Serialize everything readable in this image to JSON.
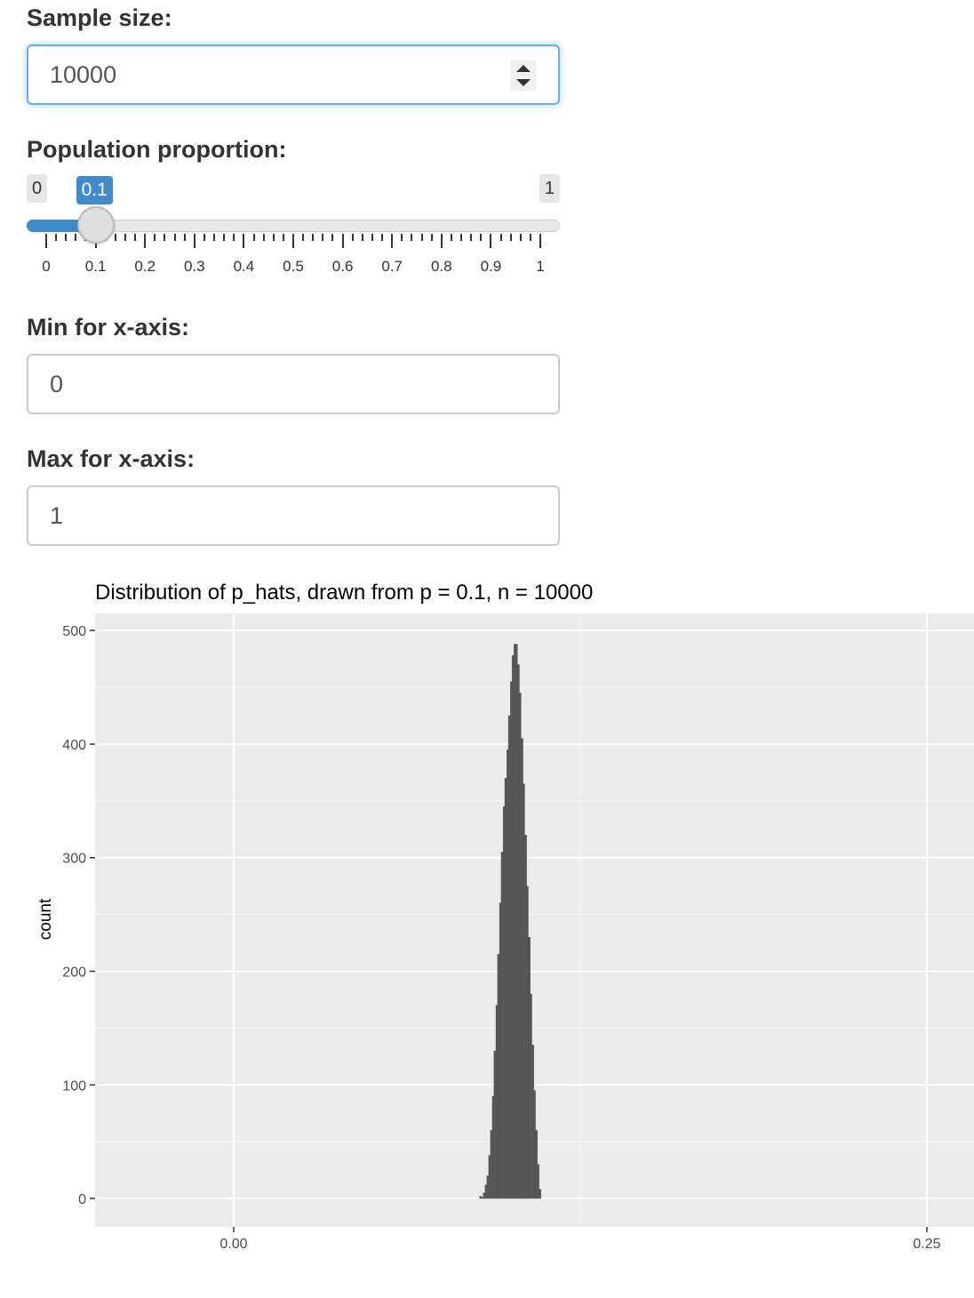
{
  "sample_size": {
    "label": "Sample size:",
    "value": "10000"
  },
  "proportion": {
    "label": "Population proportion:",
    "min_badge": "0",
    "max_badge": "1",
    "value_badge": "0.1",
    "value": 0.1,
    "min": 0,
    "max": 1,
    "tick_labels": [
      "0",
      "0.1",
      "0.2",
      "0.3",
      "0.4",
      "0.5",
      "0.6",
      "0.7",
      "0.8",
      "0.9",
      "1"
    ],
    "accent_color": "#428bca"
  },
  "x_min": {
    "label": "Min for x-axis:",
    "value": "0"
  },
  "x_max": {
    "label": "Max for x-axis:",
    "value": "1"
  },
  "chart_data": {
    "type": "bar",
    "title": "Distribution of p_hats, drawn from p = 0.1, n = 10000",
    "xlabel": "",
    "ylabel": "count",
    "xlim": [
      -0.05,
      0.267
    ],
    "ylim": [
      -25,
      515
    ],
    "x_ticks": [
      0.0,
      0.25
    ],
    "x_tick_labels": [
      "0.00",
      "0.25"
    ],
    "y_ticks": [
      0,
      100,
      200,
      300,
      400,
      500
    ],
    "y_tick_labels": [
      "0",
      "100",
      "200",
      "300",
      "400",
      "500"
    ],
    "grid": true,
    "panel_color": "#ebebeb",
    "bar_color": "#595959",
    "x": [
      0.089,
      0.0897,
      0.0903,
      0.091,
      0.0916,
      0.0923,
      0.0929,
      0.0936,
      0.0942,
      0.0949,
      0.0955,
      0.0962,
      0.0968,
      0.0975,
      0.0981,
      0.0988,
      0.0994,
      0.1001,
      0.1007,
      0.1014,
      0.102,
      0.1027,
      0.1033,
      0.104,
      0.1046,
      0.1053,
      0.1059,
      0.1066,
      0.1072,
      0.1079,
      0.1085,
      0.1092,
      0.1098,
      0.1105
    ],
    "values": [
      2,
      1,
      5,
      12,
      20,
      38,
      60,
      90,
      130,
      170,
      215,
      260,
      305,
      345,
      370,
      395,
      425,
      455,
      478,
      488,
      488,
      470,
      445,
      405,
      365,
      320,
      275,
      230,
      180,
      135,
      95,
      60,
      30,
      8
    ]
  }
}
